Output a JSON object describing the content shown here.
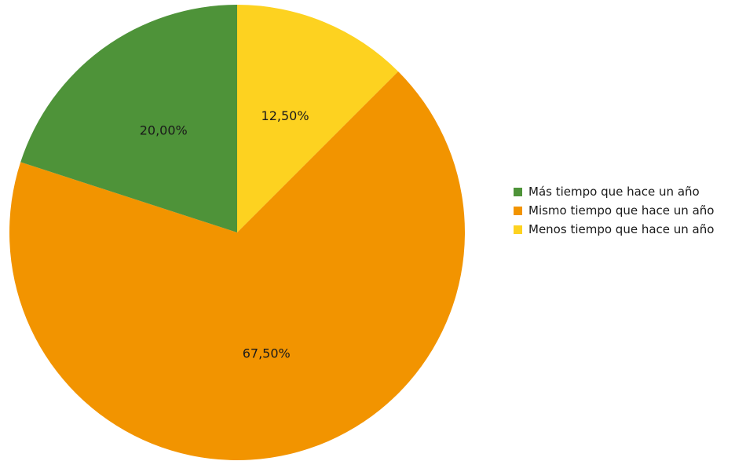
{
  "chart_data": {
    "type": "pie",
    "title": "",
    "start_angle_deg": 90,
    "direction": "clockwise",
    "legend_position": "right",
    "slices": [
      {
        "label": "Menos tiempo que hace un año",
        "value": 12.5,
        "display": "12,50%",
        "color": "#FDD220"
      },
      {
        "label": "Mismo tiempo que hace un año",
        "value": 67.5,
        "display": "67,50%",
        "color": "#F29400"
      },
      {
        "label": "Más tiempo que hace un año",
        "value": 20.0,
        "display": "20,00%",
        "color": "#4E9339"
      }
    ],
    "legend": [
      {
        "label": "Más tiempo que hace un año",
        "color": "#4E9339"
      },
      {
        "label": "Mismo tiempo que hace un año",
        "color": "#F29400"
      },
      {
        "label": "Menos tiempo que hace un año",
        "color": "#FDD220"
      }
    ]
  }
}
